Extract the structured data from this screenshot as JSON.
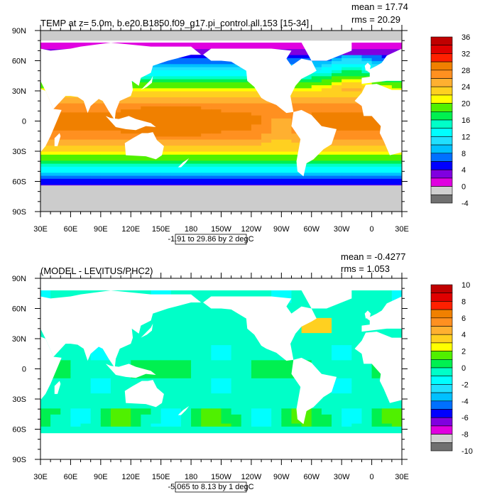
{
  "panels": [
    {
      "title": "TEMP at z=   5.0m, b.e20.B1850.f09_g17.pi_control.all.153 [15-34]",
      "mean_label": "mean = 17.74",
      "rms_label": "rms = 20.29",
      "footnote": "-1.91 to 29.86 by 2 degC",
      "field": "temperature",
      "colorbar": {
        "labels": [
          "36",
          "32",
          "28",
          "24",
          "20",
          "16",
          "12",
          "8",
          "4",
          "0",
          "-4"
        ],
        "min": -4,
        "max": 36
      }
    },
    {
      "title": "(MODEL - LEVITUS/PHC2)",
      "mean_label": "mean = -0.4277",
      "rms_label": "rms = 1.053",
      "footnote": "-5.065 to 8.13 by 1 degC",
      "field": "difference",
      "colorbar": {
        "labels": [
          "10",
          "8",
          "6",
          "4",
          "2",
          "0",
          "-2",
          "-4",
          "-6",
          "-8",
          "-10"
        ],
        "min": -10,
        "max": 10
      }
    }
  ],
  "lat_labels": [
    "90N",
    "60N",
    "30N",
    "0",
    "30S",
    "60S",
    "90S"
  ],
  "lon_labels": [
    "30E",
    "60E",
    "90E",
    "120E",
    "150E",
    "180",
    "150W",
    "120W",
    "90W",
    "60W",
    "30W",
    "0",
    "30E"
  ],
  "colors": {
    "palette": [
      "#c00000",
      "#e00000",
      "#ff2000",
      "#f08000",
      "#ff9020",
      "#ffb030",
      "#ffd020",
      "#ffff00",
      "#50f000",
      "#00f050",
      "#00ffc8",
      "#00ffff",
      "#20e0ff",
      "#00c0ff",
      "#0070ff",
      "#0000ff",
      "#8000e0",
      "#e000e0",
      "#d0d0d0",
      "#707070"
    ],
    "land": "#ffffff",
    "missing": "#cccccc"
  }
}
